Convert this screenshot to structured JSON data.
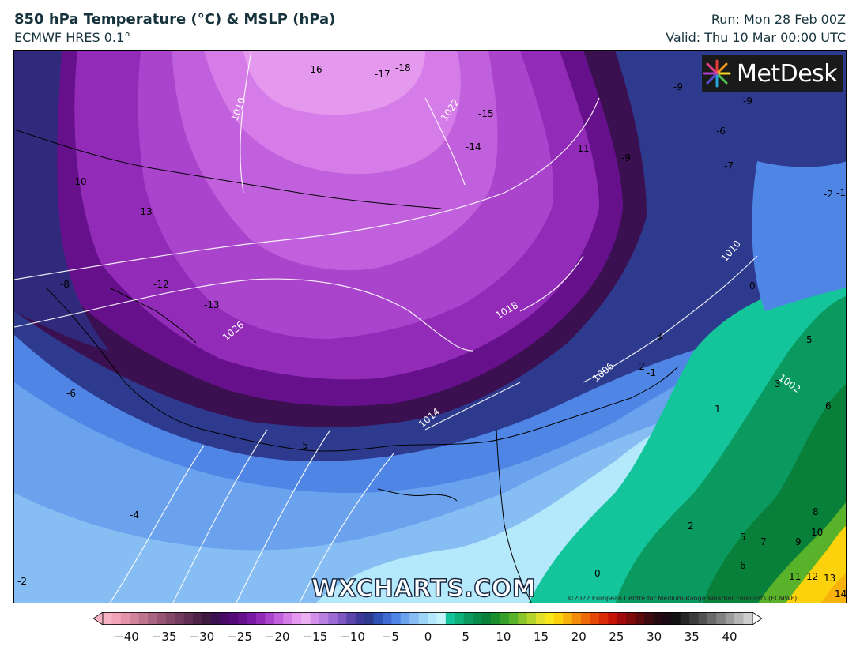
{
  "header": {
    "title": "850 hPa Temperature (°C) & MSLP (hPa)",
    "subtitle": "ECMWF HRES 0.1°",
    "run": "Run: Mon 28 Feb 00Z",
    "valid": "Valid: Thu 10 Mar 00:00 UTC"
  },
  "brand": {
    "logo_text": "MetDesk",
    "watermark": "WXCHARTS.COM",
    "copyright": "©2022 European Centre for Medium-Range Weather Forecasts (ECMWF)"
  },
  "map": {
    "temperature_labels": [
      "-16",
      "-17",
      "-18",
      "-15",
      "-14",
      "-11",
      "-9",
      "-9",
      "-6",
      "-7",
      "-9",
      "-10",
      "-13",
      "-8",
      "-12",
      "-13",
      "-2",
      "-1",
      "0",
      "-3",
      "-2",
      "-1",
      "5",
      "3",
      "6",
      "-6",
      "1",
      "-4",
      "-5",
      "2",
      "5",
      "7",
      "9",
      "8",
      "10",
      "6",
      "11",
      "12",
      "13",
      "14",
      "0",
      "-2"
    ],
    "pressure_labels": [
      "1010",
      "1022",
      "1026",
      "1018",
      "1010",
      "1014",
      "1006",
      "1002"
    ]
  },
  "colorbar": {
    "ticks": [
      "−40",
      "−35",
      "−30",
      "−25",
      "−20",
      "−15",
      "−10",
      "−5",
      "0",
      "5",
      "10",
      "15",
      "20",
      "25",
      "30",
      "35",
      "40"
    ],
    "colors": [
      "#f9b4c4",
      "#f2a4b8",
      "#e494aa",
      "#d2849c",
      "#bf748e",
      "#ab6480",
      "#975573",
      "#844767",
      "#723a5c",
      "#602e52",
      "#4f2348",
      "#3f1a3f",
      "#3a1050",
      "#480a64",
      "#560a78",
      "#66108c",
      "#7a1aa2",
      "#922cb8",
      "#aa44cc",
      "#c060dc",
      "#d67ce8",
      "#e498ee",
      "#eab0f2",
      "#d490ea",
      "#b87ee0",
      "#9c6cd2",
      "#7c58c0",
      "#5c46ac",
      "#3e3a9a",
      "#2d3a8e",
      "#2f52b4",
      "#3f6ad2",
      "#4f86e6",
      "#6aa2ee",
      "#86bef4",
      "#9ed4f8",
      "#b4e8fb",
      "#c6f4fb",
      "#14c49a",
      "#0eb07c",
      "#0a9a60",
      "#078a4a",
      "#08803a",
      "#1a8e2c",
      "#34a02a",
      "#58b22a",
      "#88c42a",
      "#b4d42c",
      "#e2e22c",
      "#f8e81c",
      "#fcd20c",
      "#f8b20c",
      "#f48c08",
      "#ee6a08",
      "#e44a06",
      "#d82a06",
      "#c41206",
      "#a00a0a",
      "#7e0a0a",
      "#5c0a0c",
      "#3e0a10",
      "#260a12",
      "#1a0a14",
      "#121212",
      "#262626",
      "#3c3c3c",
      "#525252",
      "#6a6a6a",
      "#828282",
      "#9c9c9c",
      "#b6b6b6",
      "#cecece"
    ]
  }
}
